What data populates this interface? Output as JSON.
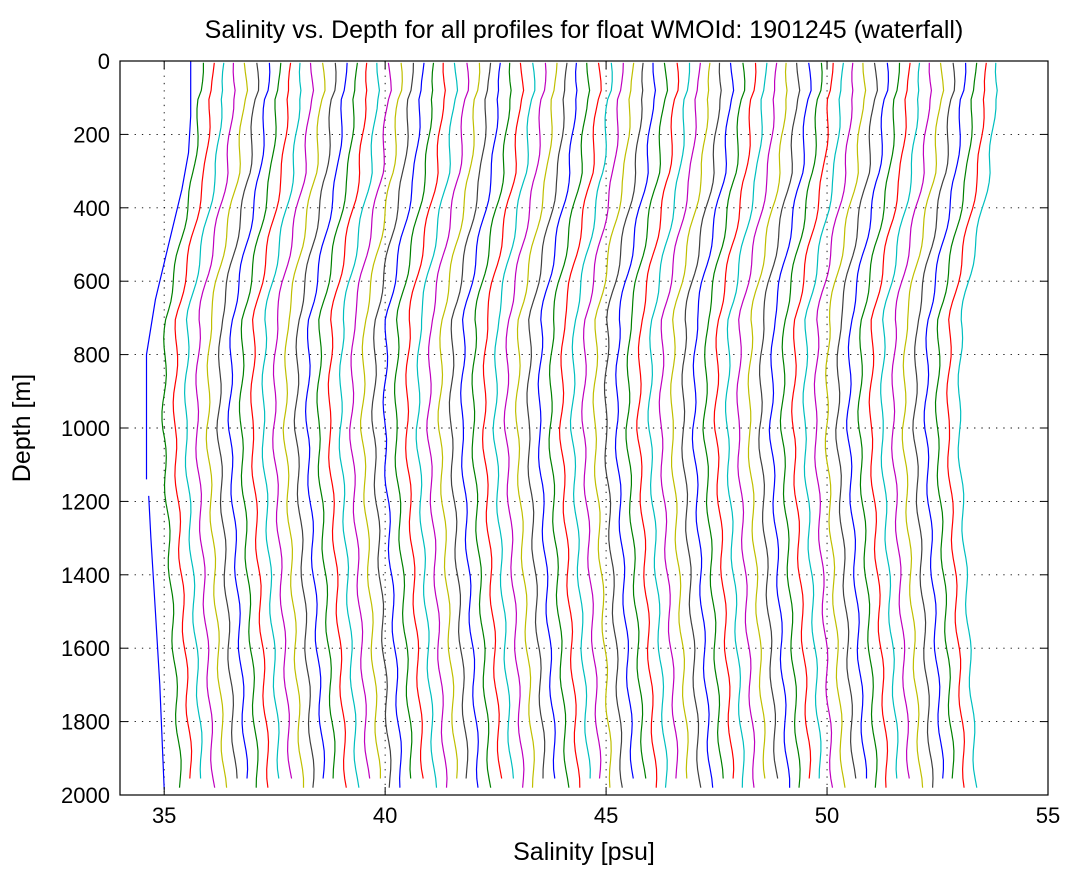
{
  "chart_data": {
    "type": "line",
    "title": "Salinity vs. Depth for all profiles for float WMOId: 1901245 (waterfall)",
    "xlabel": "Salinity [psu]",
    "ylabel": "Depth [m]",
    "xlim": [
      34,
      55
    ],
    "ylim": [
      0,
      2000
    ],
    "y_reversed": true,
    "xticks": [
      35,
      40,
      45,
      50,
      55
    ],
    "yticks": [
      0,
      200,
      400,
      600,
      800,
      1000,
      1200,
      1400,
      1600,
      1800,
      2000
    ],
    "grid": true,
    "grid_style": "dotted",
    "colors": [
      "#0000ff",
      "#008000",
      "#ff0000",
      "#00bfbf",
      "#bf00bf",
      "#bfbf00",
      "#404040"
    ],
    "waterfall": {
      "profile_count": 74,
      "first_surface_salinity": 35.6,
      "profile_offset": 0.25,
      "profile_depths": [
        [
          0,
          1140
        ],
        [
          1185,
          1985
        ]
      ]
    },
    "series": [
      {
        "values": [
          [
            35.6,
            0
          ],
          [
            35.6,
            150
          ],
          [
            35.55,
            250
          ],
          [
            35.4,
            350
          ],
          [
            35.1,
            500
          ],
          [
            34.8,
            650
          ],
          [
            34.6,
            800
          ],
          [
            34.6,
            1000
          ],
          [
            34.6,
            1140
          ]
        ]
      },
      {
        "values": [
          [
            34.65,
            1185
          ],
          [
            34.7,
            1300
          ],
          [
            34.8,
            1500
          ],
          [
            34.9,
            1700
          ],
          [
            35.0,
            1985
          ]
        ]
      }
    ]
  }
}
